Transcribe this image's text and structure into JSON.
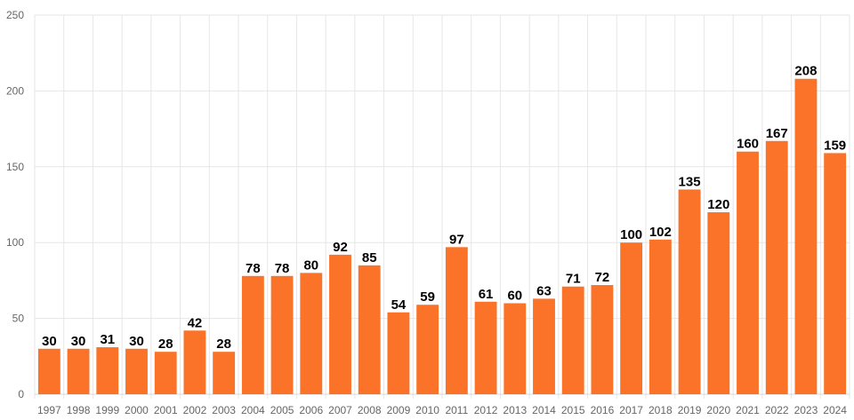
{
  "chart_data": {
    "type": "bar",
    "categories": [
      "1997",
      "1998",
      "1999",
      "2000",
      "2001",
      "2002",
      "2003",
      "2004",
      "2005",
      "2006",
      "2007",
      "2008",
      "2009",
      "2010",
      "2011",
      "2012",
      "2013",
      "2014",
      "2015",
      "2016",
      "2017",
      "2018",
      "2019",
      "2020",
      "2021",
      "2022",
      "2023",
      "2024"
    ],
    "values": [
      30,
      30,
      31,
      30,
      28,
      42,
      28,
      78,
      78,
      80,
      92,
      85,
      54,
      59,
      97,
      61,
      60,
      63,
      71,
      72,
      100,
      102,
      135,
      120,
      160,
      167,
      208,
      159
    ],
    "title": "",
    "xlabel": "",
    "ylabel": "",
    "ylim": [
      0,
      250
    ],
    "yticks": [
      0,
      50,
      100,
      150,
      200,
      250
    ],
    "grid": true,
    "bar_color": "#fa7328",
    "data_labels": true
  }
}
